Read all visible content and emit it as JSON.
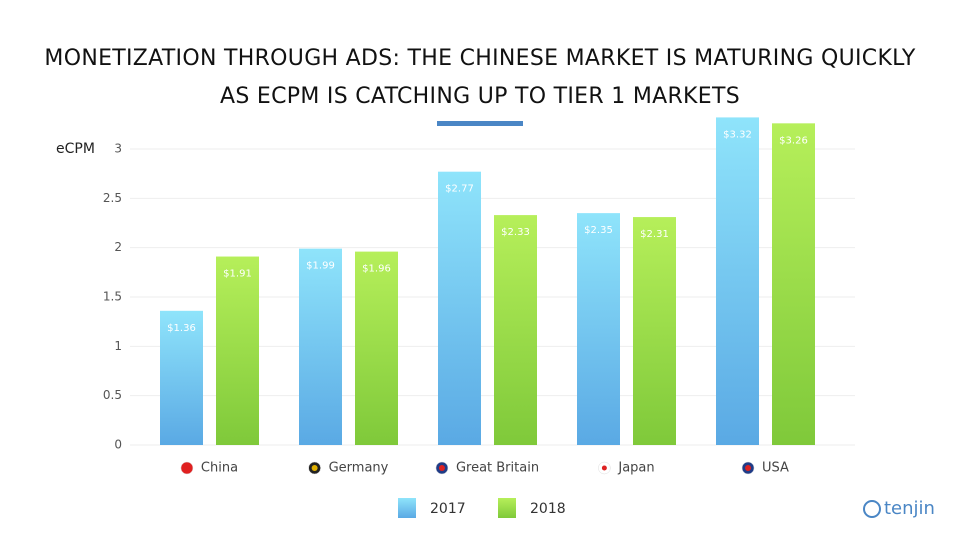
{
  "chart_data": {
    "type": "bar",
    "title": "MONETIZATION THROUGH ADS: THE CHINESE MARKET IS MATURING QUICKLY AS ECPM IS CATCHING UP TO TIER 1 MARKETS",
    "y_label": "eCPM",
    "categories": [
      "China",
      "Germany",
      "Great Britain",
      "Japan",
      "USA"
    ],
    "series": [
      {
        "name": "2017",
        "color": "#6cc4f0",
        "values": [
          1.36,
          1.99,
          2.77,
          2.35,
          3.32
        ],
        "value_labels": [
          "$1.36",
          "$1.99",
          "$2.77",
          "$2.35",
          "$3.32"
        ]
      },
      {
        "name": "2018",
        "color": "#98dc46",
        "values": [
          1.91,
          1.96,
          2.33,
          2.31,
          3.26
        ],
        "value_labels": [
          "$1.91",
          "$1.96",
          "$2.33",
          "$2.31",
          "$3.26"
        ]
      }
    ],
    "ylim": [
      0,
      3.35
    ],
    "yticks": [
      0,
      0.5,
      1,
      1.5,
      2,
      2.5,
      3
    ],
    "grid": true,
    "legend": "bottom",
    "logo": "tenjin"
  }
}
